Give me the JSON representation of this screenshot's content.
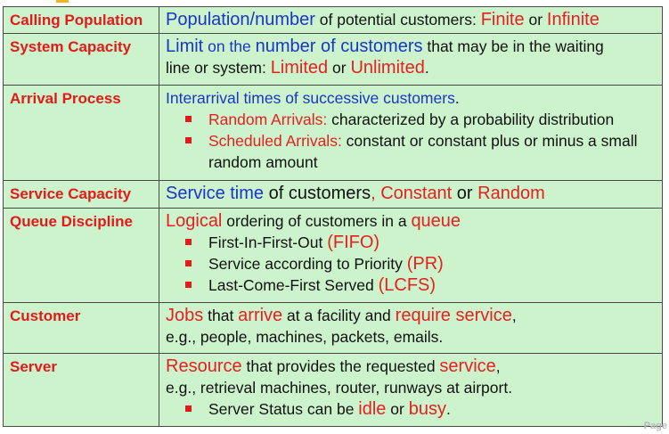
{
  "rows": [
    {
      "term": "Calling Population",
      "line1": {
        "a": "Population/number",
        "b": " of potential customers: ",
        "c": "Finite",
        "d": " or ",
        "e": "Infinite"
      }
    },
    {
      "term": "System Capacity",
      "line1": {
        "a": "Limit",
        "b": " on the ",
        "c": "number of customers",
        "d": " that may be in the waiting"
      },
      "line2": {
        "a": "line or system:  ",
        "b": "Limited",
        "c": " or ",
        "d": "Unlimited",
        "e": "."
      }
    },
    {
      "term": "Arrival Process",
      "line1": {
        "a": "Interarrival times of successive customers",
        "b": "."
      },
      "bullets": [
        {
          "a": "Random Arrivals:",
          "b": " characterized by a probability distribution"
        },
        {
          "a": "Scheduled Arrivals:",
          "b": " constant or constant plus or minus a small random amount"
        }
      ]
    },
    {
      "term": "Service Capacity",
      "line1": {
        "a": "Service time",
        "b": " of customers",
        "c": ", Constant",
        "d": " or ",
        "e": "Random"
      }
    },
    {
      "term": "Queue Discipline",
      "line1": {
        "a": "Logical",
        "b": " ordering of customers in a ",
        "c": "queue"
      },
      "bullets": [
        {
          "a": "First-In-First-Out ",
          "b": "(FIFO)"
        },
        {
          "a": "Service according to Priority ",
          "b": "(PR)"
        },
        {
          "a": "Last-Come-First Served ",
          "b": "(LCFS)"
        }
      ]
    },
    {
      "term": "Customer",
      "line1": {
        "a": "Jobs",
        "b": "  that ",
        "c": "arrive",
        "d": " at a facility and ",
        "e": "require service",
        "f": ","
      },
      "line2": "e.g., people, machines, packets, emails."
    },
    {
      "term": "Server",
      "line1": {
        "a": "Resource",
        "b": " that provides the requested ",
        "c": "service",
        "d": ","
      },
      "line2": "e.g., retrieval machines, router, runways at airport.",
      "bullets": [
        {
          "a": "Server Status can be ",
          "b": "idle",
          "c": " or ",
          "d": "busy",
          "e": "."
        }
      ]
    }
  ],
  "page_mark": "Page",
  "colors": {
    "term_red": "#e31a1a",
    "blue": "#1a35c8",
    "cell_bg": "#ccf3cc",
    "accent": "#f5b324"
  }
}
